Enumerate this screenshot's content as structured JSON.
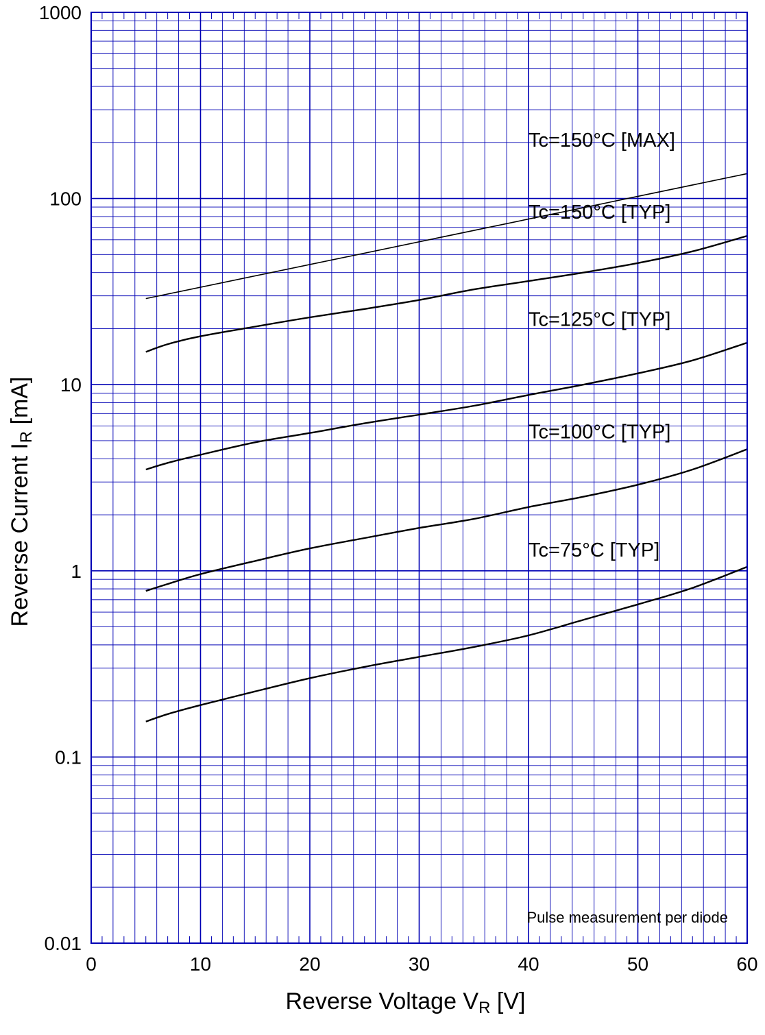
{
  "chart_data": {
    "type": "line",
    "title": "",
    "xlabel": {
      "main": "Reverse Voltage  V",
      "sub": "R",
      "unit": "  [V]"
    },
    "ylabel": {
      "main": "Reverse Current  I",
      "sub": "R",
      "unit": "  [mA]"
    },
    "xlim": [
      0,
      60
    ],
    "ylim": [
      0.01,
      1000
    ],
    "yscale": "log",
    "grid": true,
    "grid_color": "#0000b4",
    "line_color": "#000000",
    "x_ticks": [
      {
        "value": 0,
        "label": "0"
      },
      {
        "value": 10,
        "label": "10"
      },
      {
        "value": 20,
        "label": "20"
      },
      {
        "value": 30,
        "label": "30"
      },
      {
        "value": 40,
        "label": "40"
      },
      {
        "value": 50,
        "label": "50"
      },
      {
        "value": 60,
        "label": "60"
      }
    ],
    "y_ticks": [
      {
        "value": 0.01,
        "label": "0.01"
      },
      {
        "value": 0.1,
        "label": "0.1"
      },
      {
        "value": 1,
        "label": "1"
      },
      {
        "value": 10,
        "label": "10"
      },
      {
        "value": 100,
        "label": "100"
      },
      {
        "value": 1000,
        "label": "1000"
      }
    ],
    "annotation": "Pulse measurement per diode",
    "series": [
      {
        "name": "Tc=150°C [MAX]",
        "label_pos": [
          40,
          207
        ],
        "x": [
          5,
          60
        ],
        "y": [
          29,
          136
        ]
      },
      {
        "name": "Tc=150°C [TYP]",
        "label_pos": [
          40,
          85
        ],
        "x": [
          5,
          7,
          10,
          15,
          20,
          25,
          30,
          35,
          40,
          45,
          50,
          55,
          60
        ],
        "y": [
          15,
          16.5,
          18.2,
          20.5,
          23,
          25.5,
          28.5,
          32.5,
          36,
          40,
          45,
          52,
          63
        ]
      },
      {
        "name": "Tc=125°C [TYP]",
        "label_pos": [
          40,
          22.5
        ],
        "x": [
          5,
          7,
          10,
          15,
          20,
          25,
          30,
          35,
          40,
          45,
          50,
          55,
          60
        ],
        "y": [
          3.5,
          3.8,
          4.2,
          4.9,
          5.5,
          6.2,
          6.9,
          7.7,
          8.8,
          10,
          11.5,
          13.5,
          16.8
        ]
      },
      {
        "name": "Tc=100°C [TYP]",
        "label_pos": [
          40,
          5.6
        ],
        "x": [
          5,
          7,
          10,
          15,
          20,
          25,
          30,
          35,
          40,
          45,
          50,
          55,
          60
        ],
        "y": [
          0.78,
          0.85,
          0.96,
          1.13,
          1.32,
          1.5,
          1.7,
          1.9,
          2.2,
          2.5,
          2.9,
          3.5,
          4.5
        ]
      },
      {
        "name": "Tc=75°C [TYP]",
        "label_pos": [
          40,
          1.3
        ],
        "x": [
          5,
          7,
          10,
          15,
          20,
          25,
          30,
          35,
          40,
          45,
          50,
          55,
          60
        ],
        "y": [
          0.155,
          0.17,
          0.19,
          0.225,
          0.265,
          0.305,
          0.345,
          0.39,
          0.45,
          0.545,
          0.66,
          0.81,
          1.05
        ]
      }
    ]
  }
}
